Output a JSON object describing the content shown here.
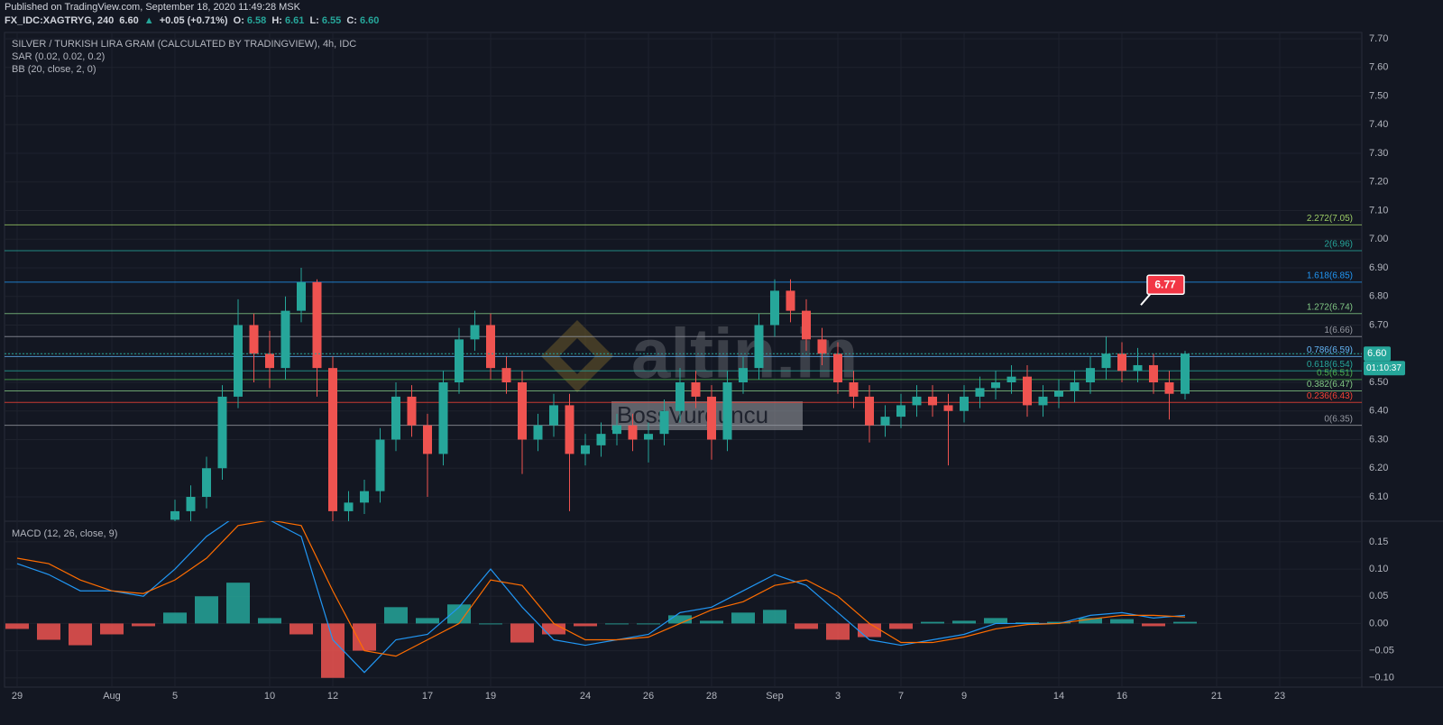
{
  "header": {
    "published": "Published on TradingView.com, September 18, 2020 11:49:28 MSK",
    "symbol": "FX_IDC:XAGTRYG, 240",
    "price": "6.60",
    "change_arrow": "▲",
    "change": "+0.05 (+0.71%)",
    "open_label": "O:",
    "open": "6.58",
    "high_label": "H:",
    "high": "6.61",
    "low_label": "L:",
    "low": "6.55",
    "close_label": "C:",
    "close": "6.60"
  },
  "watermark": {
    "logo": "altin.in",
    "user": "BossVurguncu"
  },
  "chart_data": [
    {
      "type": "candlestick",
      "title": "SILVER / TURKISH LIRA GRAM (CALCULATED BY TRADINGVIEW), 4h, IDC",
      "indicators": [
        "SAR (0.02, 0.02, 0.2)",
        "BB (20, close, 2, 0)"
      ],
      "x": [
        5,
        5.5,
        6,
        6.5,
        7,
        7.5,
        8,
        8.5,
        9,
        9.5,
        10,
        10.5,
        11,
        11.5,
        12,
        12.5,
        13,
        13.5,
        14,
        14.5,
        15,
        15.5,
        16,
        16.5,
        17,
        17.5,
        18,
        18.5,
        19,
        19.5,
        20,
        20.5,
        21,
        21.5,
        22,
        22.5,
        23,
        23.5,
        24,
        24.5,
        25,
        25.5,
        26,
        26.5,
        27,
        27.5,
        28,
        28.5,
        29,
        29.5,
        30,
        30.5,
        31,
        31.5,
        32,
        32.5,
        33,
        33.5,
        34,
        34.5,
        35,
        35.5,
        36,
        36.5,
        37
      ],
      "open": [
        6.02,
        6.05,
        6.1,
        6.2,
        6.45,
        6.7,
        6.6,
        6.55,
        6.75,
        6.85,
        6.55,
        6.05,
        6.08,
        6.12,
        6.3,
        6.45,
        6.35,
        6.25,
        6.5,
        6.65,
        6.7,
        6.55,
        6.5,
        6.3,
        6.35,
        6.42,
        6.25,
        6.28,
        6.32,
        6.35,
        6.3,
        6.32,
        6.4,
        6.5,
        6.45,
        6.3,
        6.5,
        6.55,
        6.7,
        6.82,
        6.75,
        6.65,
        6.6,
        6.5,
        6.45,
        6.35,
        6.38,
        6.42,
        6.45,
        6.42,
        6.4,
        6.45,
        6.48,
        6.5,
        6.52,
        6.42,
        6.45,
        6.47,
        6.5,
        6.55,
        6.6,
        6.54,
        6.56,
        6.5,
        6.46
      ],
      "high": [
        6.09,
        6.14,
        6.24,
        6.49,
        6.79,
        6.74,
        6.68,
        6.8,
        6.9,
        6.86,
        6.59,
        6.12,
        6.16,
        6.34,
        6.5,
        6.49,
        6.39,
        6.54,
        6.69,
        6.75,
        6.74,
        6.59,
        6.54,
        6.39,
        6.46,
        6.46,
        6.32,
        6.36,
        6.39,
        6.39,
        6.36,
        6.44,
        6.55,
        6.54,
        6.49,
        6.54,
        6.59,
        6.74,
        6.86,
        6.86,
        6.79,
        6.69,
        6.64,
        6.54,
        6.49,
        6.42,
        6.46,
        6.49,
        6.49,
        6.46,
        6.49,
        6.52,
        6.54,
        6.56,
        6.56,
        6.49,
        6.51,
        6.54,
        6.59,
        6.66,
        6.64,
        6.62,
        6.6,
        6.54,
        6.61
      ],
      "low": [
        5.98,
        6.01,
        6.06,
        6.16,
        6.41,
        6.5,
        6.48,
        6.51,
        6.71,
        6.45,
        6.0,
        6.01,
        6.04,
        6.08,
        6.26,
        6.31,
        6.1,
        6.21,
        6.46,
        6.61,
        6.51,
        6.46,
        6.18,
        6.26,
        6.31,
        6.05,
        6.21,
        6.24,
        6.28,
        6.26,
        6.22,
        6.28,
        6.36,
        6.41,
        6.23,
        6.26,
        6.46,
        6.51,
        6.66,
        6.71,
        6.61,
        6.56,
        6.46,
        6.41,
        6.29,
        6.31,
        6.34,
        6.38,
        6.38,
        6.21,
        6.36,
        6.41,
        6.44,
        6.46,
        6.38,
        6.38,
        6.41,
        6.43,
        6.46,
        6.51,
        6.5,
        6.5,
        6.46,
        6.37,
        6.44
      ],
      "close": [
        6.05,
        6.1,
        6.2,
        6.45,
        6.7,
        6.6,
        6.55,
        6.75,
        6.85,
        6.55,
        6.05,
        6.08,
        6.12,
        6.3,
        6.45,
        6.35,
        6.25,
        6.5,
        6.65,
        6.7,
        6.55,
        6.5,
        6.3,
        6.35,
        6.42,
        6.25,
        6.28,
        6.32,
        6.35,
        6.3,
        6.32,
        6.4,
        6.5,
        6.45,
        6.3,
        6.5,
        6.55,
        6.7,
        6.82,
        6.75,
        6.65,
        6.6,
        6.5,
        6.45,
        6.35,
        6.38,
        6.42,
        6.45,
        6.42,
        6.4,
        6.45,
        6.48,
        6.5,
        6.52,
        6.42,
        6.45,
        6.47,
        6.5,
        6.55,
        6.6,
        6.54,
        6.56,
        6.5,
        6.46,
        6.6
      ],
      "up_color": "#26a69a",
      "down_color": "#ef5350",
      "xlim": [
        -0.4,
        42.6
      ],
      "ylim": [
        6.015,
        7.722
      ],
      "yticks": [
        {
          "value": 7.7,
          "label": "7.70"
        },
        {
          "value": 7.6,
          "label": "7.60"
        },
        {
          "value": 7.5,
          "label": "7.50"
        },
        {
          "value": 7.4,
          "label": "7.40"
        },
        {
          "value": 7.3,
          "label": "7.30"
        },
        {
          "value": 7.2,
          "label": "7.20"
        },
        {
          "value": 7.1,
          "label": "7.10"
        },
        {
          "value": 7.0,
          "label": "7.00"
        },
        {
          "value": 6.9,
          "label": "6.90"
        },
        {
          "value": 6.8,
          "label": "6.80"
        },
        {
          "value": 6.7,
          "label": "6.70"
        },
        {
          "value": 6.6,
          "label": "6.60"
        },
        {
          "value": 6.5,
          "label": "6.50"
        },
        {
          "value": 6.4,
          "label": "6.40"
        },
        {
          "value": 6.3,
          "label": "6.30"
        },
        {
          "value": 6.2,
          "label": "6.20"
        },
        {
          "value": 6.1,
          "label": "6.10"
        }
      ],
      "grid": true,
      "fib_levels": [
        {
          "label": "2.272(7.05)",
          "value": 7.05,
          "color": "#9ccc65"
        },
        {
          "label": "2(6.96)",
          "value": 6.96,
          "color": "#26a69a"
        },
        {
          "label": "1.618(6.85)",
          "value": 6.85,
          "color": "#2196f3"
        },
        {
          "label": "1.272(6.74)",
          "value": 6.74,
          "color": "#81c784"
        },
        {
          "label": "1(6.66)",
          "value": 6.66,
          "color": "#9598a1"
        },
        {
          "label": "0.786(6.59)",
          "value": 6.59,
          "color": "#64b5f6"
        },
        {
          "label": "0.618(6.54)",
          "value": 6.54,
          "color": "#26a69a"
        },
        {
          "label": "0.5(6.51)",
          "value": 6.51,
          "color": "#4caf50"
        },
        {
          "label": "0.382(6.47)",
          "value": 6.47,
          "color": "#81c784"
        },
        {
          "label": "0.236(6.43)",
          "value": 6.43,
          "color": "#f44336"
        },
        {
          "label": "0(6.35)",
          "value": 6.35,
          "color": "#9598a1"
        }
      ],
      "last_price": {
        "value": 6.6,
        "label": "6.60",
        "countdown": "01:10:37",
        "color": "#26a69a"
      },
      "callout": {
        "x": 35.6,
        "value": 6.77,
        "label": "6.77",
        "color": "#f23645"
      }
    },
    {
      "type": "macd",
      "title": "MACD (12, 26, close, 9)",
      "x": [
        0,
        1,
        2,
        3,
        4,
        5,
        6,
        7,
        8,
        9,
        10,
        11,
        12,
        13,
        14,
        15,
        16,
        17,
        18,
        19,
        20,
        21,
        22,
        23,
        24,
        25,
        26,
        27,
        28,
        29,
        30,
        31,
        32,
        33,
        34,
        35,
        36,
        37
      ],
      "histogram": [
        -0.01,
        -0.03,
        -0.04,
        -0.02,
        -0.005,
        0.02,
        0.05,
        0.075,
        0.01,
        -0.02,
        -0.1,
        -0.05,
        0.03,
        0.01,
        0.035,
        0.0,
        -0.035,
        -0.02,
        -0.005,
        0.0,
        0.0,
        0.015,
        0.005,
        0.02,
        0.025,
        -0.01,
        -0.03,
        -0.025,
        -0.01,
        0.003,
        0.005,
        0.01,
        0.002,
        0.003,
        0.01,
        0.008,
        -0.005,
        0.003
      ],
      "macd": [
        0.11,
        0.09,
        0.06,
        0.06,
        0.05,
        0.1,
        0.16,
        0.2,
        0.19,
        0.16,
        -0.03,
        -0.09,
        -0.03,
        -0.02,
        0.03,
        0.1,
        0.03,
        -0.03,
        -0.04,
        -0.03,
        -0.02,
        0.02,
        0.03,
        0.06,
        0.09,
        0.07,
        0.02,
        -0.03,
        -0.04,
        -0.03,
        -0.02,
        0.0,
        0.0,
        0.0,
        0.015,
        0.02,
        0.01,
        0.015
      ],
      "signal": [
        0.12,
        0.11,
        0.08,
        0.06,
        0.055,
        0.08,
        0.12,
        0.18,
        0.19,
        0.18,
        0.06,
        -0.05,
        -0.06,
        -0.03,
        0.0,
        0.08,
        0.07,
        0.0,
        -0.03,
        -0.03,
        -0.025,
        0.0,
        0.025,
        0.04,
        0.07,
        0.08,
        0.05,
        0.0,
        -0.035,
        -0.035,
        -0.025,
        -0.01,
        -0.002,
        0.0,
        0.008,
        0.015,
        0.015,
        0.012
      ],
      "macd_color": "#2196f3",
      "signal_color": "#ff6d00",
      "up_color": "#26a69a",
      "down_color": "#ef5350",
      "xlim": [
        -0.4,
        42.6
      ],
      "ylim": [
        -0.117,
        0.188
      ],
      "yticks": [
        {
          "value": 0.15,
          "label": "0.15"
        },
        {
          "value": 0.1,
          "label": "0.10"
        },
        {
          "value": 0.05,
          "label": "0.05"
        },
        {
          "value": 0,
          "label": "0.00"
        },
        {
          "value": -0.05,
          "label": "−0.05"
        },
        {
          "value": -0.1,
          "label": "−0.10"
        }
      ],
      "xticks": [
        {
          "value": 0,
          "label": "29"
        },
        {
          "value": 3,
          "label": "Aug"
        },
        {
          "value": 5,
          "label": "5"
        },
        {
          "value": 8,
          "label": "10"
        },
        {
          "value": 10,
          "label": "12"
        },
        {
          "value": 13,
          "label": "17"
        },
        {
          "value": 15,
          "label": "19"
        },
        {
          "value": 18,
          "label": "24"
        },
        {
          "value": 20,
          "label": "26"
        },
        {
          "value": 22,
          "label": "28"
        },
        {
          "value": 24,
          "label": "Sep"
        },
        {
          "value": 26,
          "label": "3"
        },
        {
          "value": 28,
          "label": "7"
        },
        {
          "value": 30,
          "label": "9"
        },
        {
          "value": 33,
          "label": "14"
        },
        {
          "value": 35,
          "label": "16"
        },
        {
          "value": 38,
          "label": "21"
        },
        {
          "value": 40,
          "label": "23"
        }
      ],
      "grid": true
    }
  ]
}
